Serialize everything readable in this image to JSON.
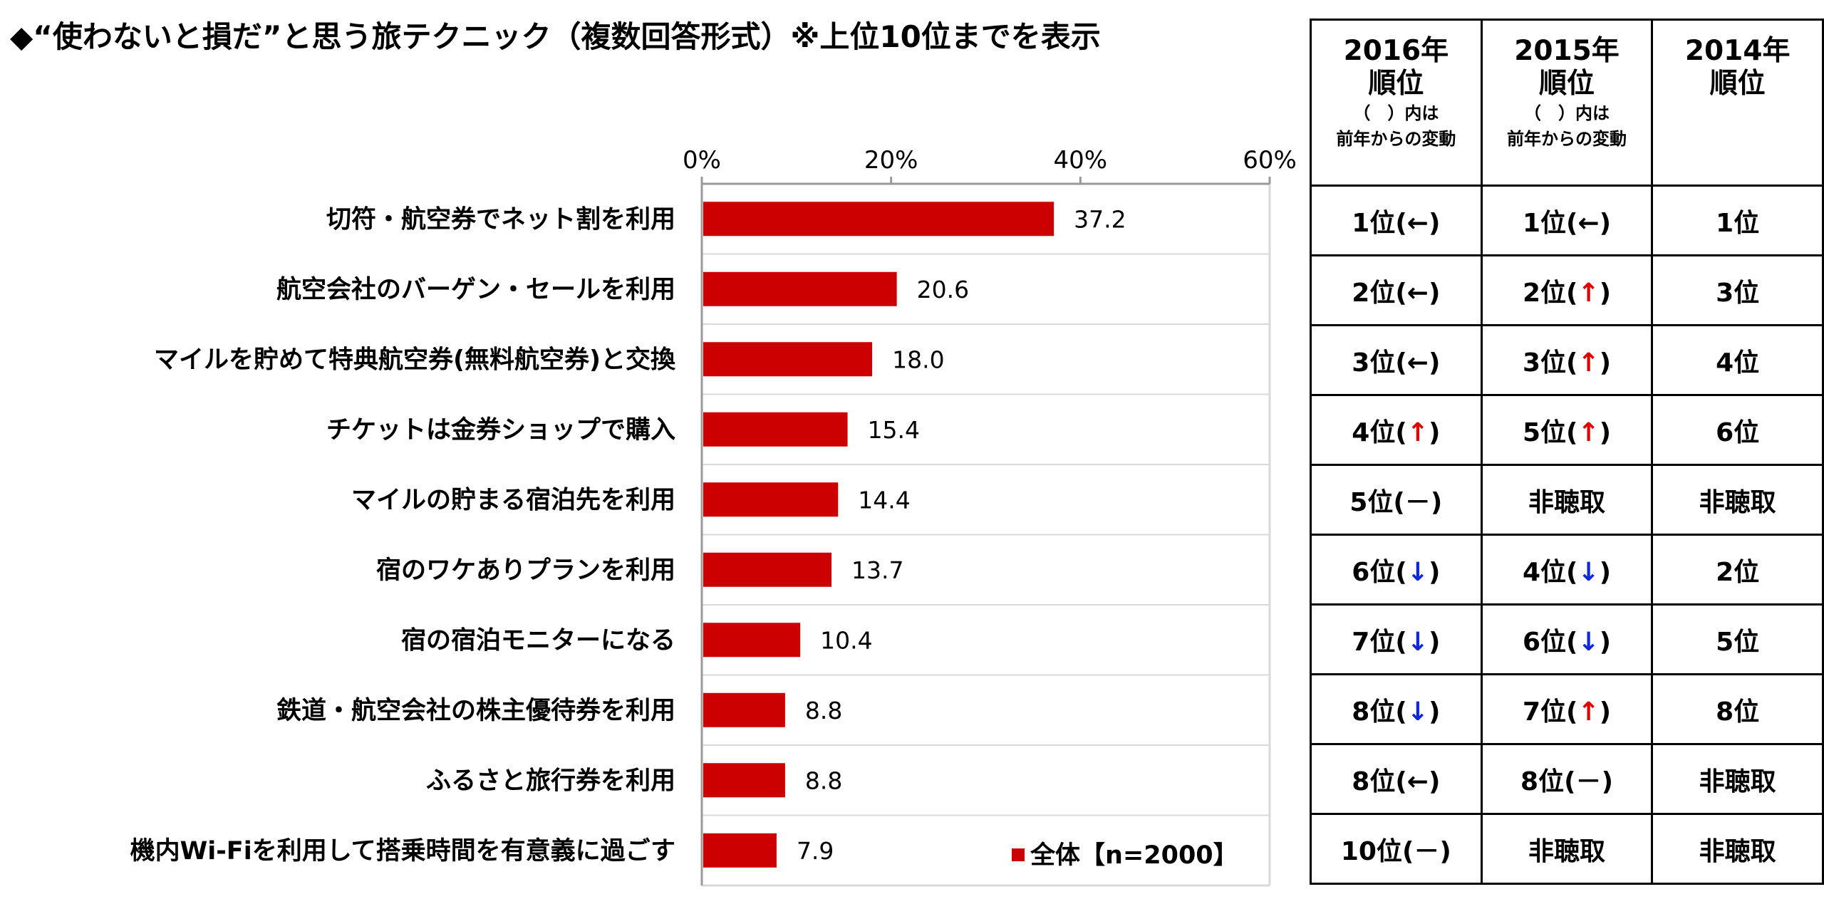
{
  "title": "◆“使わないと損だ”と思う旅テクニック（複数回答形式）※上位10位までを表示",
  "chart_data": {
    "type": "bar",
    "orientation": "horizontal",
    "categories": [
      "切符・航空券でネット割を利用",
      "航空会社のバーゲン・セールを利用",
      "マイルを貯めて特典航空券(無料航空券)と交換",
      "チケットは金券ショップで購入",
      "マイルの貯まる宿泊先を利用",
      "宿のワケありプランを利用",
      "宿の宿泊モニターになる",
      "鉄道・航空会社の株主優待券を利用",
      "ふるさと旅行券を利用",
      "機内Wi-Fiを利用して搭乗時間を有意義に過ごす"
    ],
    "series": [
      {
        "name": "全体【n=2000】",
        "values": [
          37.2,
          20.6,
          18.0,
          15.4,
          14.4,
          13.7,
          10.4,
          8.8,
          8.8,
          7.9
        ],
        "value_labels": [
          "37.2",
          "20.6",
          "18.0",
          "15.4",
          "14.4",
          "13.7",
          "10.4",
          "8.8",
          "8.8",
          "7.9"
        ]
      }
    ],
    "xlim": [
      0,
      60
    ],
    "x_ticks": [
      "0%",
      "20%",
      "40%",
      "60%"
    ],
    "x_tick_values": [
      0,
      20,
      40,
      60
    ],
    "tick_position": "top",
    "grid": true,
    "legend_position": "bottom-right",
    "bar_color": "#cc0000"
  },
  "rank_table": {
    "headers": [
      {
        "year": "2016年",
        "rank": "順位",
        "note1": "（　）内は",
        "note2": "前年からの変動"
      },
      {
        "year": "2015年",
        "rank": "順位",
        "note1": "（　）内は",
        "note2": "前年からの変動"
      },
      {
        "year": "2014年",
        "rank": "順位",
        "note1": "",
        "note2": ""
      }
    ],
    "rows": [
      [
        {
          "rank": "1位",
          "change": "←",
          "dir": "same"
        },
        {
          "rank": "1位",
          "change": "←",
          "dir": "same"
        },
        {
          "rank": "1位"
        }
      ],
      [
        {
          "rank": "2位",
          "change": "←",
          "dir": "same"
        },
        {
          "rank": "2位",
          "change": "↑",
          "dir": "up"
        },
        {
          "rank": "3位"
        }
      ],
      [
        {
          "rank": "3位",
          "change": "←",
          "dir": "same"
        },
        {
          "rank": "3位",
          "change": "↑",
          "dir": "up"
        },
        {
          "rank": "4位"
        }
      ],
      [
        {
          "rank": "4位",
          "change": "↑",
          "dir": "up"
        },
        {
          "rank": "5位",
          "change": "↑",
          "dir": "up"
        },
        {
          "rank": "6位"
        }
      ],
      [
        {
          "rank": "5位",
          "change": "－",
          "dir": "new"
        },
        {
          "rank": "非聴取"
        },
        {
          "rank": "非聴取"
        }
      ],
      [
        {
          "rank": "6位",
          "change": "↓",
          "dir": "down"
        },
        {
          "rank": "4位",
          "change": "↓",
          "dir": "down"
        },
        {
          "rank": "2位"
        }
      ],
      [
        {
          "rank": "7位",
          "change": "↓",
          "dir": "down"
        },
        {
          "rank": "6位",
          "change": "↓",
          "dir": "down"
        },
        {
          "rank": "5位"
        }
      ],
      [
        {
          "rank": "8位",
          "change": "↓",
          "dir": "down"
        },
        {
          "rank": "7位",
          "change": "↑",
          "dir": "up"
        },
        {
          "rank": "8位"
        }
      ],
      [
        {
          "rank": "8位",
          "change": "←",
          "dir": "same"
        },
        {
          "rank": "8位",
          "change": "－",
          "dir": "new"
        },
        {
          "rank": "非聴取"
        }
      ],
      [
        {
          "rank": "10位",
          "change": "－",
          "dir": "new"
        },
        {
          "rank": "非聴取"
        },
        {
          "rank": "非聴取"
        }
      ]
    ]
  },
  "colors": {
    "bar": "#cc0000",
    "up_arrow": "#e00000",
    "down_arrow": "#1028d8",
    "grid": "#d9d9d9",
    "axis": "#9a9a9a"
  }
}
